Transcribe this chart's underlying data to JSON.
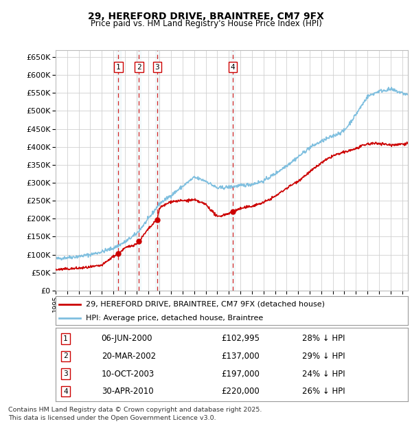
{
  "title": "29, HEREFORD DRIVE, BRAINTREE, CM7 9FX",
  "subtitle": "Price paid vs. HM Land Registry's House Price Index (HPI)",
  "footer": "Contains HM Land Registry data © Crown copyright and database right 2025.\nThis data is licensed under the Open Government Licence v3.0.",
  "legend_house": "29, HEREFORD DRIVE, BRAINTREE, CM7 9FX (detached house)",
  "legend_hpi": "HPI: Average price, detached house, Braintree",
  "sale_points": [
    {
      "label": "1",
      "date": "06-JUN-2000",
      "price": 102995,
      "price_str": "£102,995",
      "hpi_pct": "28% ↓ HPI",
      "x_year": 2000.44
    },
    {
      "label": "2",
      "date": "20-MAR-2002",
      "price": 137000,
      "price_str": "£137,000",
      "hpi_pct": "29% ↓ HPI",
      "x_year": 2002.22
    },
    {
      "label": "3",
      "date": "10-OCT-2003",
      "price": 197000,
      "price_str": "£197,000",
      "hpi_pct": "24% ↓ HPI",
      "x_year": 2003.78
    },
    {
      "label": "4",
      "date": "30-APR-2010",
      "price": 220000,
      "price_str": "£220,000",
      "hpi_pct": "26% ↓ HPI",
      "x_year": 2010.33
    }
  ],
  "hpi_color": "#7fbfdf",
  "house_color": "#cc0000",
  "background_color": "#ffffff",
  "plot_bg_color": "#ffffff",
  "grid_color": "#d0d0d0",
  "ylim": [
    0,
    670000
  ],
  "xlim_start": 1995.0,
  "xlim_end": 2025.5,
  "yticks": [
    0,
    50000,
    100000,
    150000,
    200000,
    250000,
    300000,
    350000,
    400000,
    450000,
    500000,
    550000,
    600000,
    650000
  ]
}
